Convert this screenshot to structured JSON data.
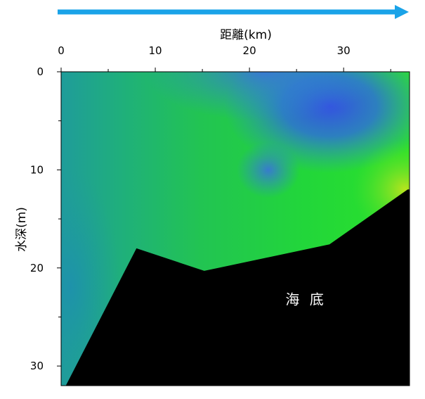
{
  "chart_data": {
    "type": "heatmap",
    "xlabel": "距離(km)",
    "ylabel": "水深(m)",
    "x_axis_position": "top",
    "y_axis_inverted": true,
    "xlim": [
      0,
      37
    ],
    "ylim": [
      0,
      32
    ],
    "x_ticks": [
      "0",
      "10",
      "20",
      "30"
    ],
    "y_ticks": [
      "0",
      "10",
      "20",
      "30"
    ],
    "direction_arrow_color": "#1aa3e8",
    "seabed_label": "海 底",
    "seabed_color": "#000000",
    "seabed_profile": [
      {
        "x": 0.5,
        "y": 32
      },
      {
        "x": 8,
        "y": 18
      },
      {
        "x": 15.2,
        "y": 20.3
      },
      {
        "x": 28.5,
        "y": 17.6
      },
      {
        "x": 36.8,
        "y": 12
      }
    ],
    "color_scale": [
      "#2f4bd8",
      "#1e8fd0",
      "#1fa3a0",
      "#22c45a",
      "#22dd22",
      "#b4e61e"
    ],
    "field_features": [
      {
        "description": "blue maximum",
        "x": 28.5,
        "y": 3.5,
        "color": "#3a5ae6"
      },
      {
        "description": "blue tongue",
        "x": 22,
        "y": 10,
        "color": "#3f7ae6"
      },
      {
        "description": "yellow-green corner",
        "x": 36.5,
        "y": 12,
        "color": "#b4e61e"
      }
    ]
  }
}
